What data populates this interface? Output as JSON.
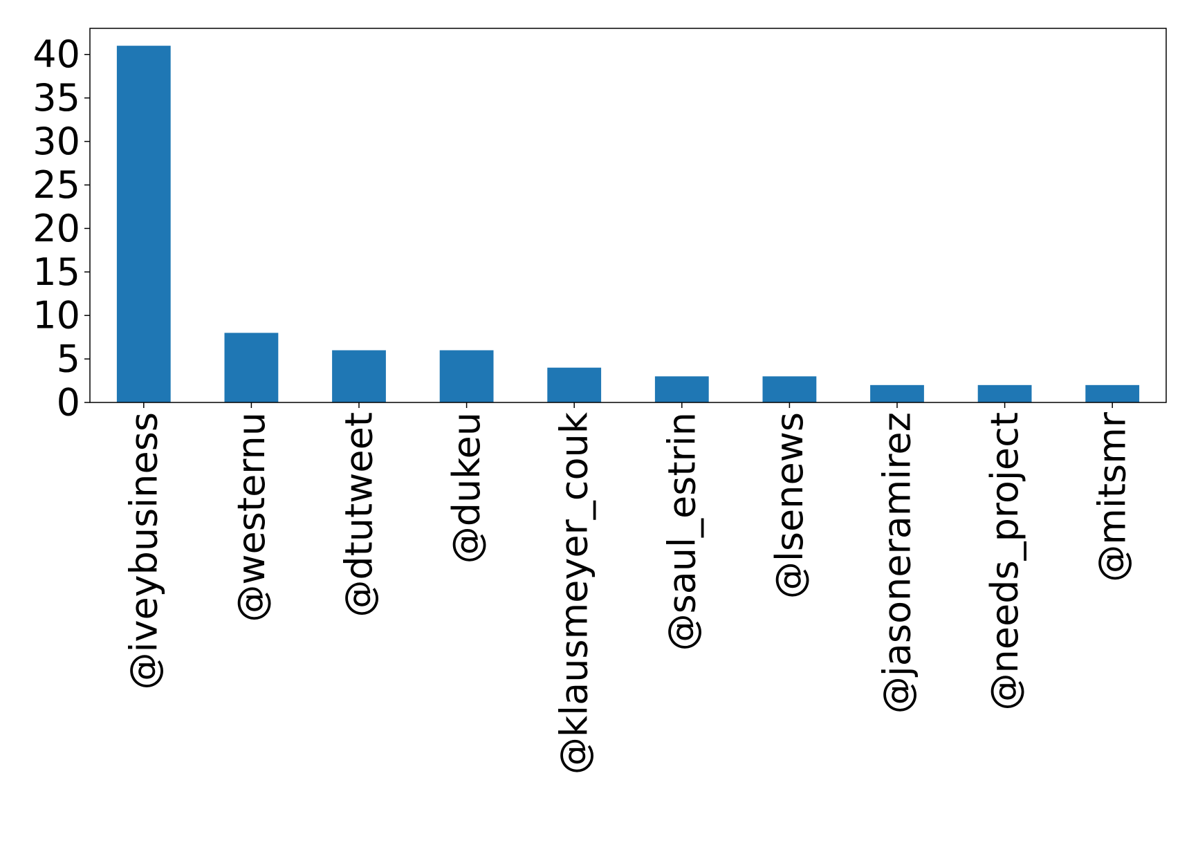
{
  "chart_data": {
    "type": "bar",
    "title": "",
    "xlabel": "",
    "ylabel": "",
    "categories": [
      "@iveybusiness",
      "@westernu",
      "@dtutweet",
      "@dukeu",
      "@klausmeyer_couk",
      "@saul_estrin",
      "@lsenews",
      "@jasoneramirez",
      "@needs_project",
      "@mitsmr"
    ],
    "values": [
      41,
      8,
      6,
      6,
      4,
      3,
      3,
      2,
      2,
      2
    ],
    "ylim": [
      0,
      43
    ],
    "yticks": [
      0,
      5,
      10,
      15,
      20,
      25,
      30,
      35,
      40
    ],
    "bar_color": "#1f77b4",
    "grid": false,
    "legend": "none"
  }
}
